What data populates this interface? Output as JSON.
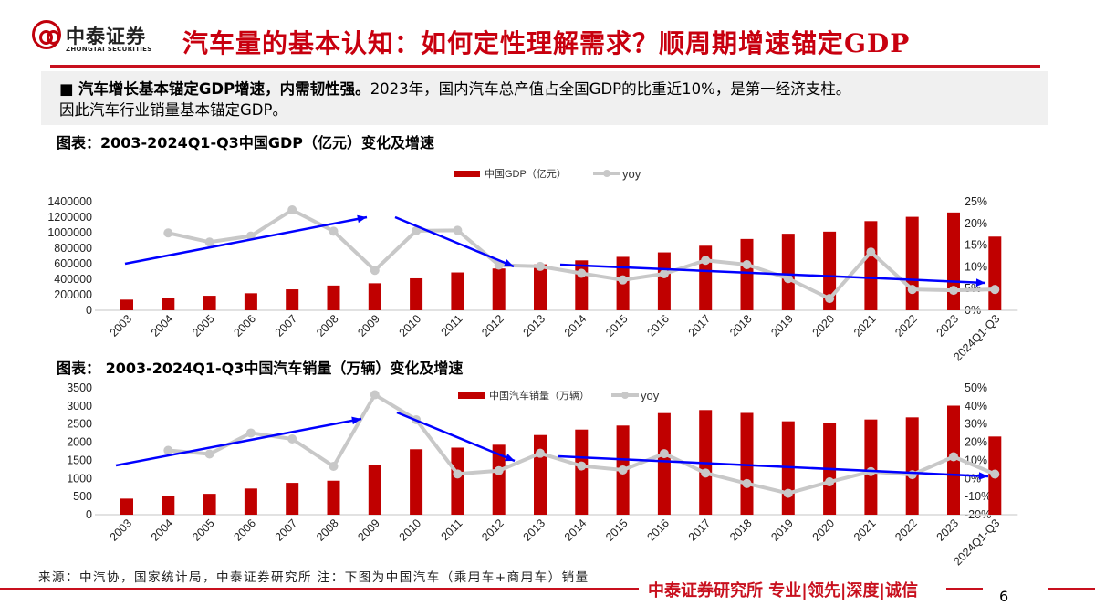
{
  "header": {
    "logo_cn": "中泰证券",
    "logo_en": "ZHONGTAI SECURITIES",
    "title": "汽车量的基本认知：如何定性理解需求？顺周期增速锚定GDP"
  },
  "summary": {
    "bullet": "■",
    "bold": "汽车增长基本锚定GDP增速，内需韧性强。",
    "line1_rest": "2023年，国内汽车总产值占全国GDP的比重近10%，是第一经济支柱。",
    "line2": "因此汽车行业销量基本锚定GDP。"
  },
  "colors": {
    "bar": "#c00000",
    "line": "#c8c8c8",
    "arrow": "#0000ff",
    "brand": "#c8101e"
  },
  "chart_data": [
    {
      "type": "bar+line",
      "title": "图表：2003-2024Q1-Q3中国GDP（亿元）变化及增速",
      "categories": [
        "2003",
        "2004",
        "2005",
        "2006",
        "2007",
        "2008",
        "2009",
        "2010",
        "2011",
        "2012",
        "2013",
        "2014",
        "2015",
        "2016",
        "2017",
        "2018",
        "2019",
        "2020",
        "2021",
        "2022",
        "2023",
        "2024Q1-Q3"
      ],
      "series": [
        {
          "name": "中国GDP（亿元）",
          "type": "bar",
          "axis": "left",
          "values": [
            137422,
            161840,
            187319,
            219439,
            270092,
            319245,
            348518,
            412119,
            487940,
            538580,
            592963,
            643563,
            688858,
            746395,
            832036,
            919281,
            986515,
            1013567,
            1149237,
            1204724,
            1260582,
            949746
          ]
        },
        {
          "name": "yoy",
          "type": "line",
          "axis": "right",
          "values": [
            null,
            17.8,
            15.7,
            17.1,
            23.1,
            18.2,
            9.2,
            18.3,
            18.4,
            10.4,
            10.1,
            8.5,
            7.0,
            8.4,
            11.5,
            10.5,
            7.3,
            2.7,
            13.4,
            4.8,
            4.6,
            4.8
          ]
        }
      ],
      "y_left": {
        "ticks": [
          "0",
          "200000",
          "400000",
          "600000",
          "800000",
          "1000000",
          "1200000",
          "1400000"
        ],
        "range": [
          0,
          1400000
        ]
      },
      "y_right": {
        "ticks": [
          "0%",
          "5%",
          "10%",
          "15%",
          "20%",
          "25%"
        ],
        "range": [
          0,
          25
        ]
      },
      "legend": "top-center"
    },
    {
      "type": "bar+line",
      "title": "图表： 2003-2024Q1-Q3中国汽车销量（万辆）变化及增速",
      "categories": [
        "2003",
        "2004",
        "2005",
        "2006",
        "2007",
        "2008",
        "2009",
        "2010",
        "2011",
        "2012",
        "2013",
        "2014",
        "2015",
        "2016",
        "2017",
        "2018",
        "2019",
        "2020",
        "2021",
        "2022",
        "2023",
        "2024Q1-Q3"
      ],
      "series": [
        {
          "name": "中国汽车销量（万辆）",
          "type": "bar",
          "axis": "left",
          "values": [
            444,
            507,
            576,
            722,
            879,
            938,
            1364,
            1806,
            1851,
            1931,
            2198,
            2349,
            2460,
            2803,
            2888,
            2808,
            2577,
            2531,
            2627,
            2686,
            3009,
            2157
          ]
        },
        {
          "name": "yoy",
          "type": "line",
          "axis": "right",
          "values": [
            null,
            15.5,
            13.5,
            25.1,
            21.8,
            6.7,
            46.2,
            32.4,
            2.5,
            4.3,
            13.9,
            6.9,
            4.7,
            13.7,
            3.0,
            -2.8,
            -8.2,
            -1.9,
            3.8,
            2.1,
            12.0,
            2.4
          ]
        }
      ],
      "y_left": {
        "ticks": [
          "0",
          "500",
          "1000",
          "1500",
          "2000",
          "2500",
          "3000",
          "3500"
        ],
        "range": [
          0,
          3500
        ]
      },
      "y_right": {
        "ticks": [
          "-20%",
          "-10%",
          "0%",
          "10%",
          "20%",
          "30%",
          "40%",
          "50%"
        ],
        "range": [
          -20,
          50
        ]
      },
      "legend": "top-center"
    }
  ],
  "footer": {
    "source": "来源：中汽协，国家统计局，中泰证券研究所   注：下图为中国汽车（乘用车+商用车）销量",
    "slogan": "中泰证券研究所 专业|领先|深度|诚信",
    "page": "6"
  }
}
